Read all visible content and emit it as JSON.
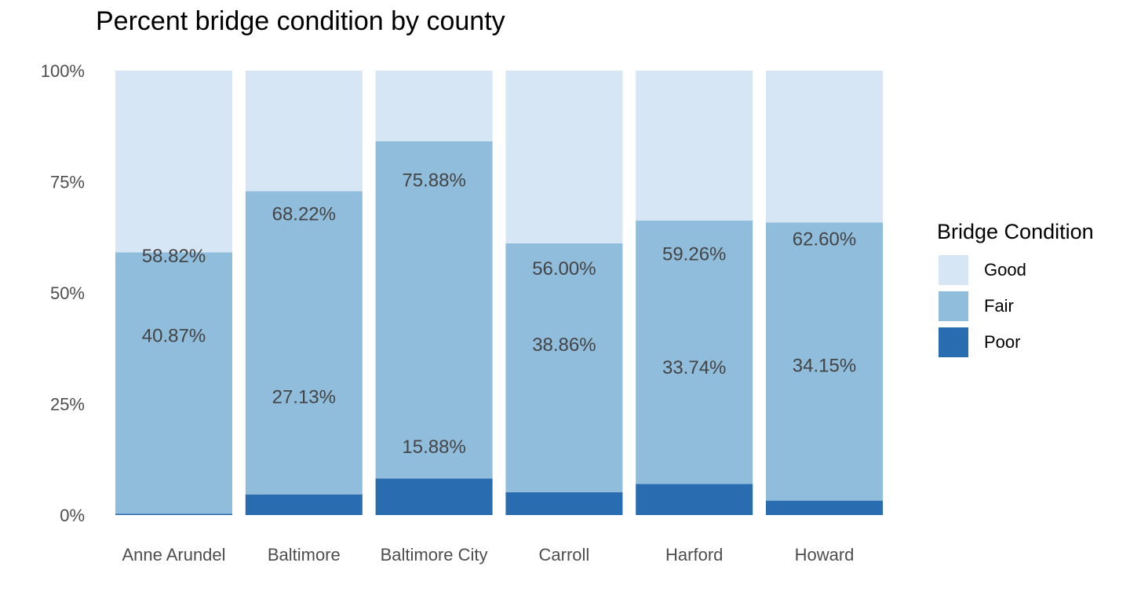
{
  "chart_data": {
    "type": "bar",
    "stacked": true,
    "title": "Percent bridge condition by county",
    "xlabel": "",
    "ylabel": "",
    "ylim": [
      0,
      100
    ],
    "y_ticks": [
      "0%",
      "25%",
      "50%",
      "75%",
      "100%"
    ],
    "grid": false,
    "legend_position": "right",
    "legend_title": "Bridge Condition",
    "categories": [
      "Anne Arundel",
      "Baltimore",
      "Baltimore City",
      "Carroll",
      "Harford",
      "Howard"
    ],
    "series": [
      {
        "name": "Good",
        "color": "#d6e6f4",
        "values": [
          40.87,
          27.13,
          15.88,
          38.86,
          33.74,
          34.15
        ],
        "labels": [
          "40.87%",
          "27.13%",
          "15.88%",
          "38.86%",
          "33.74%",
          "34.15%"
        ]
      },
      {
        "name": "Fair",
        "color": "#8fbddb",
        "values": [
          58.82,
          68.22,
          75.88,
          56.0,
          59.26,
          62.6
        ],
        "labels": [
          "58.82%",
          "68.22%",
          "75.88%",
          "56.00%",
          "59.26%",
          "62.60%"
        ]
      },
      {
        "name": "Poor",
        "color": "#2a6cb0",
        "values": [
          0.31,
          4.65,
          8.24,
          5.14,
          7.0,
          3.25
        ],
        "labels": []
      }
    ]
  }
}
